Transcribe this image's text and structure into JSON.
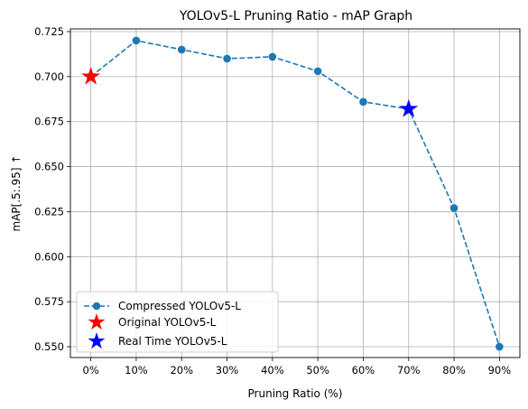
{
  "chart_data": {
    "type": "line",
    "title": "YOLOv5-L Pruning Ratio - mAP Graph",
    "xlabel": "Pruning Ratio (%)",
    "ylabel": "mAP[.5:.95] ↑",
    "categories": [
      "0%",
      "10%",
      "20%",
      "30%",
      "40%",
      "50%",
      "60%",
      "70%",
      "80%",
      "90%"
    ],
    "x": [
      0,
      10,
      20,
      30,
      40,
      50,
      60,
      70,
      80,
      90
    ],
    "ylim": [
      0.544,
      0.7265
    ],
    "yticks": [
      0.55,
      0.575,
      0.6,
      0.625,
      0.65,
      0.675,
      0.7,
      0.725
    ],
    "ytick_labels": [
      "0.550",
      "0.575",
      "0.600",
      "0.625",
      "0.650",
      "0.675",
      "0.700",
      "0.725"
    ],
    "grid": true,
    "legend_position": "lower-left",
    "series": [
      {
        "name": "Compressed YOLOv5-L",
        "style": "dashed-line-circle",
        "color": "#1f77b4",
        "values": [
          0.7,
          0.72,
          0.715,
          0.71,
          0.711,
          0.703,
          0.686,
          0.682,
          0.627,
          0.55
        ]
      },
      {
        "name": "Original YOLOv5-L",
        "style": "star",
        "color": "#ff0000",
        "points": [
          {
            "x": 0,
            "y": 0.7
          }
        ]
      },
      {
        "name": "Real Time YOLOv5-L",
        "style": "star",
        "color": "#0000ff",
        "points": [
          {
            "x": 70,
            "y": 0.682
          }
        ]
      }
    ]
  }
}
